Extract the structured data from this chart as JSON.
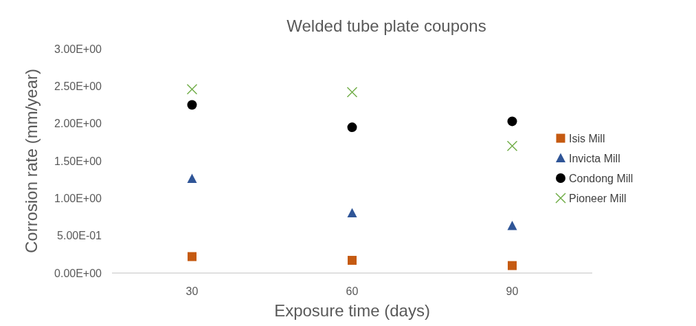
{
  "chart_data": {
    "type": "scatter",
    "title": "Welded tube plate coupons",
    "xlabel": "Exposure time (days)",
    "ylabel": "Corrosion rate (mm/year)",
    "categories": [
      "30",
      "60",
      "90"
    ],
    "ylim": [
      0,
      3
    ],
    "yticks": [
      {
        "value": 0,
        "label": "0.00E+00"
      },
      {
        "value": 0.5,
        "label": "5.00E-01"
      },
      {
        "value": 1,
        "label": "1.00E+00"
      },
      {
        "value": 1.5,
        "label": "1.50E+00"
      },
      {
        "value": 2,
        "label": "2.00E+00"
      },
      {
        "value": 2.5,
        "label": "2.50E+00"
      },
      {
        "value": 3,
        "label": "3.00E+00"
      }
    ],
    "grid": false,
    "legend": "right",
    "series": [
      {
        "name": "Isis Mill",
        "color": "#c55a11",
        "marker": "square",
        "values": [
          0.22,
          0.17,
          0.1
        ]
      },
      {
        "name": "Invicta Mill",
        "color": "#2f5597",
        "marker": "triangle",
        "values": [
          1.26,
          0.8,
          0.63
        ]
      },
      {
        "name": "Condong Mill",
        "color": "#000000",
        "marker": "circle",
        "values": [
          2.25,
          1.95,
          2.03
        ]
      },
      {
        "name": "Pioneer Mill",
        "color": "#70ad47",
        "marker": "cross",
        "values": [
          2.46,
          2.42,
          1.7
        ]
      }
    ]
  }
}
